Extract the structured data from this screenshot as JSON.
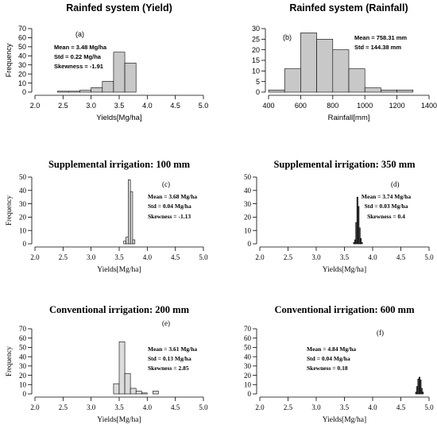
{
  "chart_data": [
    {
      "type": "bar",
      "panel": "(a)",
      "title": "Rainfed system (Yield)",
      "xlabel": "Yields[Mg/ha]",
      "ylabel": "Frequency",
      "xlim": [
        2.0,
        5.0
      ],
      "ylim": [
        0,
        70
      ],
      "xticks": [
        "2.0",
        "2.5",
        "3.0",
        "3.5",
        "4.0",
        "4.5",
        "5.0"
      ],
      "yticks": [
        "0",
        "10",
        "20",
        "30",
        "40",
        "50",
        "60",
        "70"
      ],
      "bins": [
        [
          2.4,
          2.6
        ],
        [
          2.6,
          2.8
        ],
        [
          2.8,
          3.0
        ],
        [
          3.0,
          3.2
        ],
        [
          3.2,
          3.4
        ],
        [
          3.4,
          3.6
        ],
        [
          3.6,
          3.8
        ]
      ],
      "values": [
        1,
        1,
        2,
        5,
        12,
        44,
        32
      ],
      "stats": [
        "Mean = 3.48 Mg/ha",
        "Std = 0.22 Mg/ha",
        "Skewness = -1.91"
      ],
      "bar_color": "#c8c8c8"
    },
    {
      "type": "bar",
      "panel": "(b)",
      "title": "Rainfed system (Rainfall)",
      "xlabel": "Rainfall[mm]",
      "ylabel": "",
      "xlim": [
        400,
        1400
      ],
      "ylim": [
        0,
        30
      ],
      "xticks": [
        "400",
        "600",
        "800",
        "1000",
        "1200",
        "1400"
      ],
      "yticks": [
        "0",
        "5",
        "10",
        "15",
        "20",
        "25",
        "30"
      ],
      "bins": [
        [
          400,
          500
        ],
        [
          500,
          600
        ],
        [
          600,
          700
        ],
        [
          700,
          800
        ],
        [
          800,
          900
        ],
        [
          900,
          1000
        ],
        [
          1000,
          1100
        ],
        [
          1100,
          1200
        ],
        [
          1200,
          1300
        ]
      ],
      "values": [
        1,
        11,
        28,
        25,
        20,
        11,
        2,
        1,
        1
      ],
      "stats": [
        "Mean = 758.31 mm",
        "Std = 144.38 mm"
      ],
      "bar_color": "#c8c8c8"
    },
    {
      "type": "bar",
      "panel": "(c)",
      "title": "Supplemental irrigation: 100 mm",
      "xlabel": "Yields[Mg/ha]",
      "ylabel": "Frequency",
      "xlim": [
        2.0,
        5.0
      ],
      "ylim": [
        0,
        50
      ],
      "xticks": [
        "2.0",
        "2.5",
        "3.0",
        "3.5",
        "4.0",
        "4.5",
        "5.0"
      ],
      "yticks": [
        "0",
        "10",
        "20",
        "30",
        "40",
        "50"
      ],
      "bins": [
        [
          3.58,
          3.62
        ],
        [
          3.62,
          3.66
        ],
        [
          3.66,
          3.7
        ],
        [
          3.7,
          3.74
        ],
        [
          3.74,
          3.78
        ]
      ],
      "values": [
        2,
        5,
        48,
        39,
        3
      ],
      "stats": [
        "Mean = 3.68 Mg/ha",
        "Std = 0.04 Mg/ha",
        "Skewness = -1.13"
      ],
      "bar_color": "#dcdcdc"
    },
    {
      "type": "bar",
      "panel": "(d)",
      "title": "Supplemental irrigation: 350 mm",
      "xlabel": "Yields[Mg/ha]",
      "ylabel": "",
      "xlim": [
        2.0,
        5.0
      ],
      "ylim": [
        0,
        50
      ],
      "xticks": [
        "2.0",
        "2.5",
        "3.0",
        "3.5",
        "4.0",
        "4.5",
        "5.0"
      ],
      "yticks": [
        "0",
        "10",
        "20",
        "30",
        "40",
        "50"
      ],
      "bins": [
        [
          3.66,
          3.68
        ],
        [
          3.68,
          3.7
        ],
        [
          3.7,
          3.72
        ],
        [
          3.72,
          3.74
        ],
        [
          3.74,
          3.76
        ],
        [
          3.76,
          3.78
        ],
        [
          3.78,
          3.8
        ],
        [
          3.8,
          3.82
        ]
      ],
      "values": [
        1,
        3,
        16,
        35,
        28,
        12,
        4,
        1
      ],
      "stats": [
        "Mean = 3.74 Mg/ha",
        "Std = 0.03 Mg/ha",
        "Skewness = 0.4"
      ],
      "bar_color": "#4a4a4a"
    },
    {
      "type": "bar",
      "panel": "(e)",
      "title": "Conventional irrigation: 200 mm",
      "xlabel": "Yields[Mg/ha]",
      "ylabel": "Frequency",
      "xlim": [
        2.0,
        5.0
      ],
      "ylim": [
        0,
        70
      ],
      "xticks": [
        "2.0",
        "2.5",
        "3.0",
        "3.5",
        "4.0",
        "4.5",
        "5.0"
      ],
      "yticks": [
        "0",
        "10",
        "20",
        "30",
        "40",
        "50",
        "60",
        "70"
      ],
      "bins": [
        [
          3.4,
          3.5
        ],
        [
          3.5,
          3.6
        ],
        [
          3.6,
          3.7
        ],
        [
          3.7,
          3.8
        ],
        [
          3.8,
          3.9
        ],
        [
          3.9,
          4.0
        ],
        [
          4.0,
          4.1
        ],
        [
          4.1,
          4.2
        ]
      ],
      "values": [
        11,
        56,
        22,
        6,
        3,
        1,
        0,
        3
      ],
      "stats": [
        "Mean = 3.61 Mg/ha",
        "Std = 0.13 Mg/ha",
        "Skewness = 2.85"
      ],
      "bar_color": "#dcdcdc"
    },
    {
      "type": "bar",
      "panel": "(f)",
      "title": "Conventional irrigation: 600 mm",
      "xlabel": "Yields[Mg/ha]",
      "ylabel": "",
      "xlim": [
        2.0,
        5.0
      ],
      "ylim": [
        0,
        70
      ],
      "xticks": [
        "2.0",
        "2.5",
        "3.0",
        "3.5",
        "4.0",
        "4.5",
        "5.0"
      ],
      "yticks": [
        "0",
        "10",
        "20",
        "30",
        "40",
        "50",
        "60",
        "70"
      ],
      "bins": [
        [
          4.76,
          4.78
        ],
        [
          4.78,
          4.8
        ],
        [
          4.8,
          4.82
        ],
        [
          4.82,
          4.84
        ],
        [
          4.84,
          4.86
        ],
        [
          4.86,
          4.88
        ],
        [
          4.88,
          4.9
        ]
      ],
      "values": [
        2,
        8,
        16,
        18,
        15,
        6,
        2
      ],
      "stats": [
        "Mean = 4.84 Mg/ha",
        "Std = 0.04 Mg/ha",
        "Skewness = 0.18"
      ],
      "bar_color": "#4a4a4a"
    }
  ]
}
